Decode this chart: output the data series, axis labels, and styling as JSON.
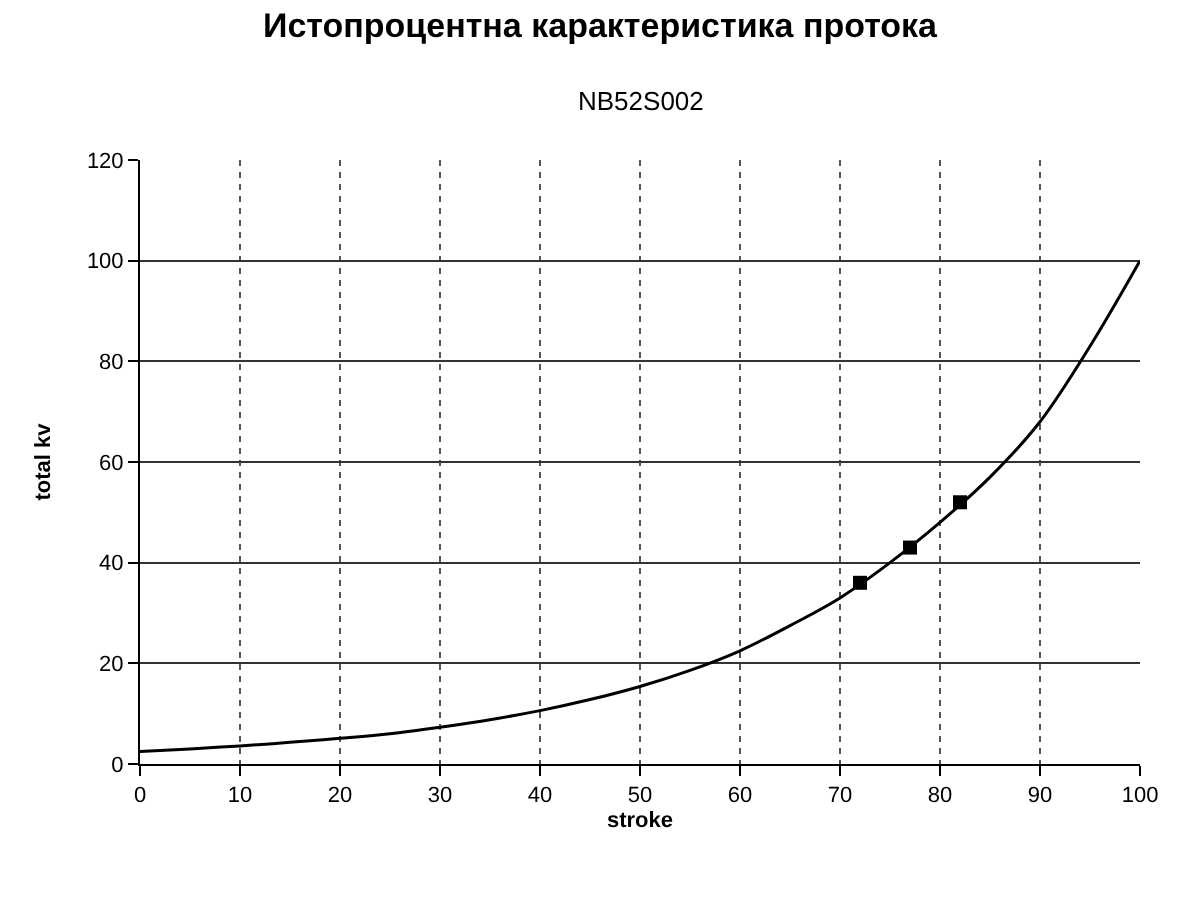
{
  "chart_data": {
    "type": "line",
    "title": "Истопроцентна карактеристика протока",
    "subtitle": "NB52S002",
    "xlabel": "stroke",
    "ylabel": "total kv",
    "series": [
      {
        "color": "#000000",
        "x": [
          0,
          5,
          10,
          15,
          20,
          25,
          30,
          35,
          40,
          45,
          50,
          55,
          60,
          65,
          70,
          75,
          80,
          85,
          90,
          95,
          100
        ],
        "values": [
          2.5,
          3,
          3.6,
          4.3,
          5.1,
          6,
          7.3,
          8.8,
          10.6,
          12.8,
          15.4,
          18.6,
          22.5,
          27.5,
          33,
          40,
          48,
          57,
          68,
          83,
          100
        ],
        "marker": "none"
      },
      {
        "type": "scatter",
        "color": "#000000",
        "x": [
          72,
          77,
          82
        ],
        "values": [
          36,
          43,
          52
        ],
        "marker": "square"
      }
    ],
    "xlim": [
      0,
      100
    ],
    "xticks": [
      0,
      10,
      20,
      30,
      40,
      50,
      60,
      70,
      80,
      90,
      100
    ],
    "ylim": [
      0,
      120
    ],
    "yticks": [
      0,
      20,
      40,
      60,
      80,
      100,
      120
    ],
    "grid": true
  }
}
